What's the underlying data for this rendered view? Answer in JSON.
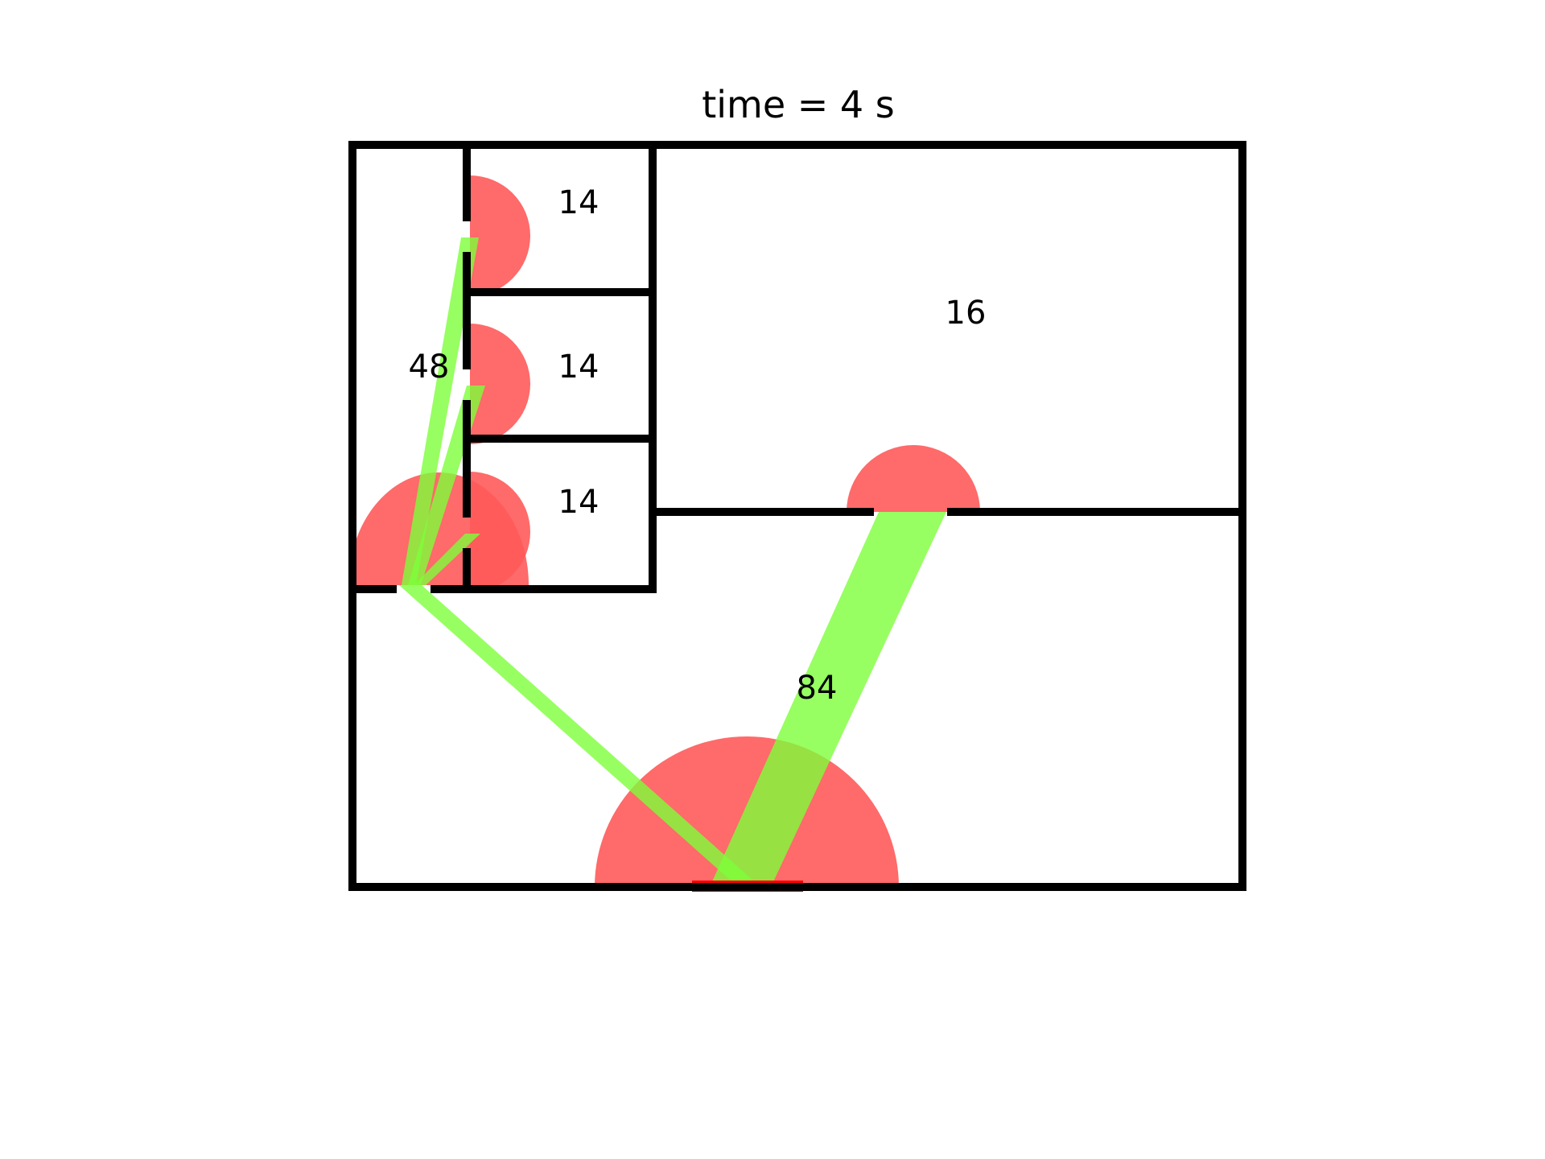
{
  "title": "time = 4 s",
  "rooms": [
    {
      "id": "corridor-west",
      "label": "48"
    },
    {
      "id": "office-1",
      "label": "14"
    },
    {
      "id": "office-2",
      "label": "14"
    },
    {
      "id": "office-3",
      "label": "14"
    },
    {
      "id": "hall-north",
      "label": "16"
    },
    {
      "id": "hall-south",
      "label": "84"
    }
  ],
  "colors": {
    "wall": "#000000",
    "door_flow_marker": "#ff5a5a",
    "route_arrow": "#7dff3a",
    "exit": "#ff0000"
  },
  "legend": null
}
